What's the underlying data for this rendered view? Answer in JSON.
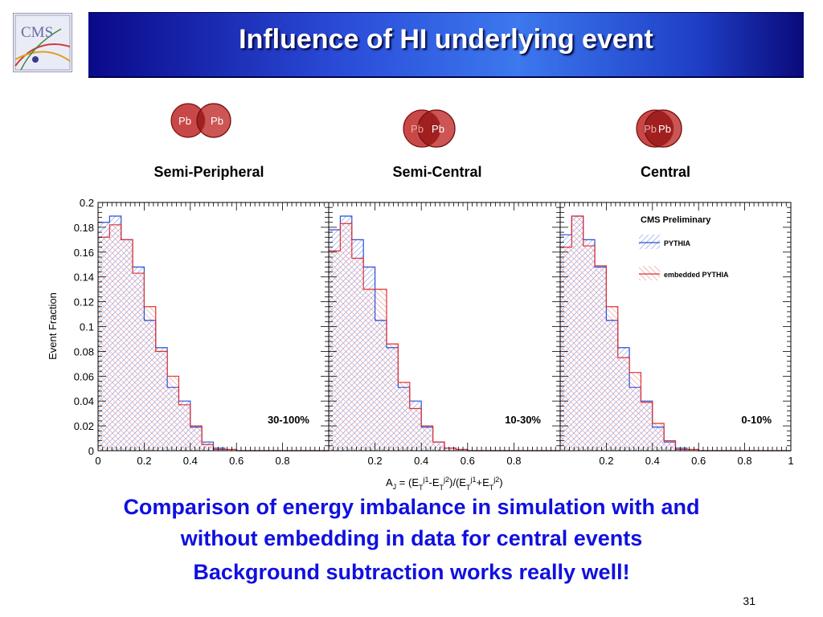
{
  "slide": {
    "title": "Influence of HI underlying event",
    "page_number": "31",
    "logo_text": "CMS",
    "captions": [
      "Comparison of energy imbalance in simulation with and",
      "without embedding in data for central events",
      "Background subtraction works really well!"
    ]
  },
  "collisions": [
    {
      "label": "Semi-Peripheral",
      "nucleus_left": "Pb",
      "nucleus_right": "Pb"
    },
    {
      "label": "Semi-Central",
      "nucleus_left": "Pb",
      "nucleus_right": "Pb"
    },
    {
      "label": "Central",
      "nucleus_left": "Pb",
      "nucleus_right": "Pb"
    }
  ],
  "colors": {
    "pythia": "#2a4fd8",
    "embedded": "#e03030",
    "caption": "#1010e0",
    "nucleus": "#c84848"
  },
  "chart_data": {
    "type": "bar",
    "ylabel": "Event Fraction",
    "xlabel_main": "A",
    "xlabel_sub": "J",
    "xlabel_rest": " = (E",
    "xlabel_formula": "A_J = (E_T^j1 - E_T^j2)/(E_T^j1 + E_T^j2)",
    "ylim": [
      0,
      0.2
    ],
    "xlim": [
      0,
      1
    ],
    "yticks": [
      "0",
      "0.02",
      "0.04",
      "0.06",
      "0.08",
      "0.1",
      "0.12",
      "0.14",
      "0.16",
      "0.18",
      "0.2"
    ],
    "bin_edges": [
      0,
      0.05,
      0.1,
      0.15,
      0.2,
      0.25,
      0.3,
      0.35,
      0.4,
      0.45,
      0.5,
      0.55,
      0.6,
      0.65,
      0.7,
      0.75,
      0.8,
      0.85,
      0.9,
      0.95,
      1.0
    ],
    "legend": {
      "title": "CMS Preliminary",
      "entries": [
        "PYTHIA",
        "embedded PYTHIA"
      ],
      "placement": "top-right of third panel"
    },
    "panels": [
      {
        "centrality": "30-100%",
        "xticks": [
          "0",
          "0.2",
          "0.4",
          "0.6",
          "0.8"
        ],
        "series": [
          {
            "name": "PYTHIA",
            "values": [
              0.184,
              0.189,
              0.17,
              0.148,
              0.105,
              0.083,
              0.051,
              0.04,
              0.019,
              0.007,
              0.002,
              0.001,
              0,
              0,
              0,
              0,
              0,
              0,
              0,
              0
            ]
          },
          {
            "name": "embedded PYTHIA",
            "values": [
              0.172,
              0.182,
              0.17,
              0.143,
              0.116,
              0.08,
              0.06,
              0.037,
              0.02,
              0.005,
              0.001,
              0.001,
              0,
              0,
              0,
              0,
              0,
              0,
              0,
              0
            ]
          }
        ]
      },
      {
        "centrality": "10-30%",
        "xticks": [
          "0.2",
          "0.4",
          "0.6",
          "0.8"
        ],
        "series": [
          {
            "name": "PYTHIA",
            "values": [
              0.178,
              0.189,
              0.17,
              0.148,
              0.105,
              0.083,
              0.051,
              0.04,
              0.019,
              0.007,
              0.002,
              0.001,
              0,
              0,
              0,
              0,
              0,
              0,
              0,
              0
            ]
          },
          {
            "name": "embedded PYTHIA",
            "values": [
              0.161,
              0.183,
              0.155,
              0.13,
              0.13,
              0.086,
              0.055,
              0.034,
              0.02,
              0.007,
              0.002,
              0.001,
              0,
              0,
              0,
              0,
              0,
              0,
              0,
              0
            ]
          }
        ]
      },
      {
        "centrality": "0-10%",
        "xticks": [
          "0.2",
          "0.4",
          "0.6",
          "0.8",
          "1"
        ],
        "series": [
          {
            "name": "PYTHIA",
            "values": [
              0.174,
              0.189,
              0.17,
              0.148,
              0.105,
              0.083,
              0.051,
              0.04,
              0.019,
              0.007,
              0.002,
              0.001,
              0,
              0,
              0,
              0,
              0,
              0,
              0,
              0
            ]
          },
          {
            "name": "embedded PYTHIA",
            "values": [
              0.164,
              0.189,
              0.165,
              0.149,
              0.116,
              0.075,
              0.063,
              0.039,
              0.022,
              0.008,
              0.001,
              0.001,
              0,
              0,
              0,
              0,
              0,
              0,
              0,
              0
            ]
          }
        ]
      }
    ]
  }
}
